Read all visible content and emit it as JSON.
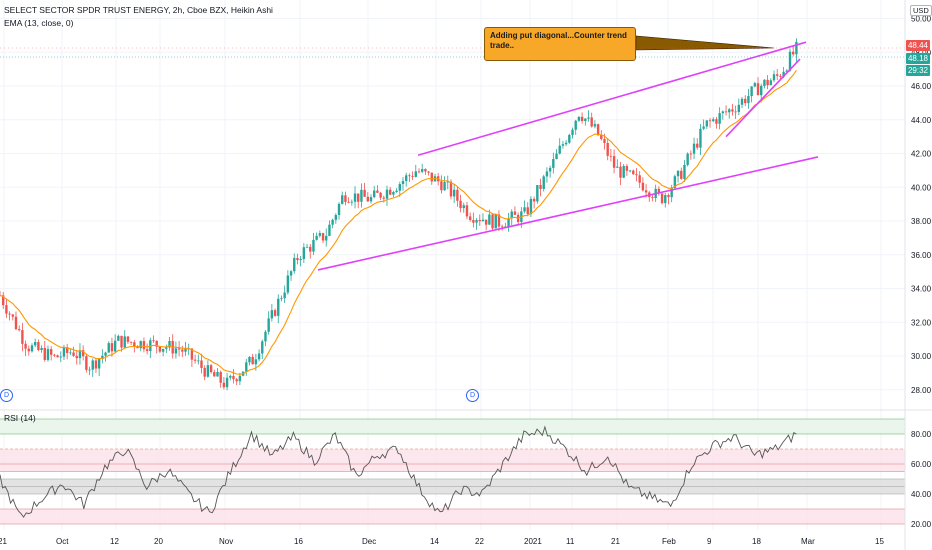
{
  "header": {
    "symbol_line": "SELECT SECTOR SPDR TRUST ENERGY, 2h, Cboe BZX, Heikin Ashi",
    "ema_line": "EMA (13, close, 0)",
    "currency": "USD",
    "rsi_label": "RSI (14)",
    "dividend_mark": "D"
  },
  "annotation": {
    "text": "Adding put diagonal...Counter trend trade.."
  },
  "price_tags": {
    "high": "48.44",
    "last": "48.18",
    "countdown": "29:32"
  },
  "colors": {
    "up": "#26a69a",
    "down": "#ef5350",
    "ema": "#ff9800",
    "trendline": "#e040fb",
    "rsi": "#555555",
    "note_bg": "#f7a829"
  },
  "chart_data": [
    {
      "type": "candlestick",
      "title": "",
      "y_axis": {
        "min": 26.8,
        "max": 51.1,
        "ticks": [
          28,
          30,
          32,
          34,
          36,
          38,
          40,
          42,
          44,
          46,
          48,
          50
        ],
        "unit": "USD"
      },
      "x_ticks": [
        "21",
        "Oct",
        "12",
        "20",
        "Nov",
        "16",
        "Dec",
        "14",
        "22",
        "2021",
        "11",
        "21",
        "Feb",
        "9",
        "18",
        "Mar",
        "15"
      ],
      "grid": true,
      "series": [
        {
          "name": "EMA (13, close, 0)",
          "type": "line"
        }
      ],
      "approx_close_path": [
        [
          0,
          33.6
        ],
        [
          0.03,
          30.6
        ],
        [
          0.06,
          29.9
        ],
        [
          0.08,
          30.3
        ],
        [
          0.1,
          29.4
        ],
        [
          0.13,
          30.9
        ],
        [
          0.17,
          30.7
        ],
        [
          0.2,
          30.4
        ],
        [
          0.23,
          29.0
        ],
        [
          0.25,
          28.3
        ],
        [
          0.28,
          29.8
        ],
        [
          0.31,
          33.5
        ],
        [
          0.33,
          36.0
        ],
        [
          0.36,
          37.2
        ],
        [
          0.38,
          39.6
        ],
        [
          0.41,
          39.3
        ],
        [
          0.44,
          40.2
        ],
        [
          0.46,
          41.0
        ],
        [
          0.49,
          40.2
        ],
        [
          0.52,
          38.4
        ],
        [
          0.55,
          37.9
        ],
        [
          0.58,
          38.4
        ],
        [
          0.61,
          41.3
        ],
        [
          0.64,
          44.5
        ],
        [
          0.66,
          43.2
        ],
        [
          0.68,
          41.1
        ],
        [
          0.71,
          40.2
        ],
        [
          0.73,
          39.3
        ],
        [
          0.75,
          40.6
        ],
        [
          0.78,
          43.7
        ],
        [
          0.81,
          44.7
        ],
        [
          0.84,
          46.0
        ],
        [
          0.86,
          46.6
        ],
        [
          0.88,
          48.18
        ]
      ],
      "trendlines": [
        {
          "from": [
            "16 Nov",
            35.1
          ],
          "to": [
            "end",
            41.8
          ],
          "role": "channel bottom"
        },
        {
          "from": [
            "Dec",
            41.9
          ],
          "to": [
            "end",
            48.6
          ],
          "role": "channel top"
        },
        {
          "from": [
            "11 Feb",
            43.0
          ],
          "to": [
            "18 Feb",
            47.6
          ],
          "role": "short-term support"
        }
      ]
    },
    {
      "type": "line",
      "title": "RSI (14)",
      "y_axis": {
        "min": 16,
        "max": 96,
        "ticks": [
          20,
          40,
          60,
          80
        ]
      },
      "bands": [
        {
          "from": 80,
          "to": 90,
          "color": "#e8f5e9"
        },
        {
          "from": 55,
          "to": 70,
          "color": "#fce4ec"
        },
        {
          "from": 40,
          "to": 50,
          "color": "#e0e0e0"
        },
        {
          "from": 20,
          "to": 30,
          "color": "#fce4ec"
        }
      ],
      "levels": [
        90,
        80,
        70,
        60,
        55,
        50,
        45,
        40,
        30,
        20
      ],
      "approx_values": [
        50,
        24,
        37,
        47,
        33,
        58,
        70,
        45,
        56,
        40,
        27,
        55,
        80,
        65,
        78,
        62,
        79,
        52,
        66,
        70,
        44,
        26,
        43,
        40,
        60,
        79,
        82,
        70,
        55,
        66,
        44,
        38,
        32,
        60,
        72,
        78,
        66,
        70,
        80
      ]
    }
  ]
}
